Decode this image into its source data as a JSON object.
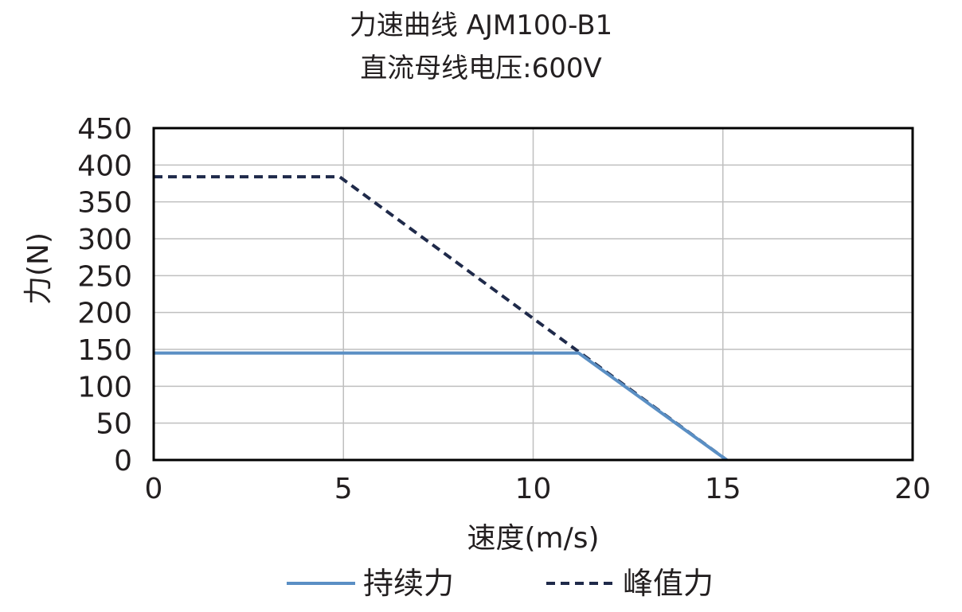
{
  "chart_data": {
    "type": "line",
    "title": "力速曲线 AJM100-B1",
    "subtitle": "直流母线电压:600V",
    "xlabel": "速度(m/s)",
    "ylabel": "力(N)",
    "xlim": [
      0,
      20
    ],
    "ylim": [
      0,
      450
    ],
    "xticks": [
      0,
      5,
      10,
      15,
      20
    ],
    "yticks": [
      0,
      50,
      100,
      150,
      200,
      250,
      300,
      350,
      400,
      450
    ],
    "grid": true,
    "legend_position": "bottom",
    "series": [
      {
        "name": "持续力",
        "style": "solid",
        "color": "#5a8fc4",
        "x": [
          0,
          11.2,
          15.1
        ],
        "y": [
          145,
          145,
          0
        ]
      },
      {
        "name": "峰值力",
        "style": "dashed",
        "color": "#1f2a4a",
        "x": [
          0,
          4.9,
          15.1
        ],
        "y": [
          384,
          384,
          0
        ]
      }
    ]
  }
}
